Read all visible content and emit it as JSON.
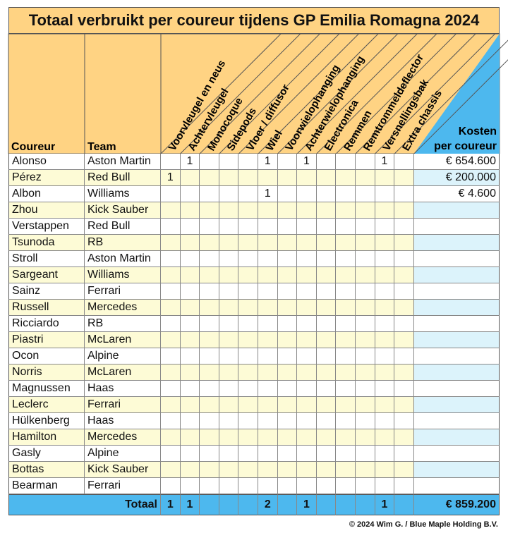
{
  "title": "Totaal verbruikt per coureur tijdens GP Emilia Romagna 2024",
  "headers": {
    "driver": "Coureur",
    "team": "Team",
    "parts": [
      "Voorvleugel en neus",
      "Achtervleugel",
      "Monocoque",
      "Sidepods",
      "Vloer / diffusor",
      "Wiel",
      "Voorwielophanging",
      "Achterwielophanging",
      "Electronica",
      "Remmen",
      "Remtrommeldeflector",
      "Versnellingsbak",
      "Extra chassis"
    ],
    "cost_line1": "Kosten",
    "cost_line2": "per coureur"
  },
  "rows": [
    {
      "driver": "Alonso",
      "team": "Aston Martin",
      "parts": [
        "",
        "1",
        "",
        "",
        "",
        "1",
        "",
        "1",
        "",
        "",
        "",
        "1",
        ""
      ],
      "cost": "€ 654.600"
    },
    {
      "driver": "Pérez",
      "team": "Red Bull",
      "parts": [
        "1",
        "",
        "",
        "",
        "",
        "",
        "",
        "",
        "",
        "",
        "",
        "",
        ""
      ],
      "cost": "€ 200.000"
    },
    {
      "driver": "Albon",
      "team": "Williams",
      "parts": [
        "",
        "",
        "",
        "",
        "",
        "1",
        "",
        "",
        "",
        "",
        "",
        "",
        ""
      ],
      "cost": "€ 4.600"
    },
    {
      "driver": "Zhou",
      "team": "Kick Sauber",
      "parts": [
        "",
        "",
        "",
        "",
        "",
        "",
        "",
        "",
        "",
        "",
        "",
        "",
        ""
      ],
      "cost": ""
    },
    {
      "driver": "Verstappen",
      "team": "Red Bull",
      "parts": [
        "",
        "",
        "",
        "",
        "",
        "",
        "",
        "",
        "",
        "",
        "",
        "",
        ""
      ],
      "cost": ""
    },
    {
      "driver": "Tsunoda",
      "team": "RB",
      "parts": [
        "",
        "",
        "",
        "",
        "",
        "",
        "",
        "",
        "",
        "",
        "",
        "",
        ""
      ],
      "cost": ""
    },
    {
      "driver": "Stroll",
      "team": "Aston Martin",
      "parts": [
        "",
        "",
        "",
        "",
        "",
        "",
        "",
        "",
        "",
        "",
        "",
        "",
        ""
      ],
      "cost": ""
    },
    {
      "driver": "Sargeant",
      "team": "Williams",
      "parts": [
        "",
        "",
        "",
        "",
        "",
        "",
        "",
        "",
        "",
        "",
        "",
        "",
        ""
      ],
      "cost": ""
    },
    {
      "driver": "Sainz",
      "team": "Ferrari",
      "parts": [
        "",
        "",
        "",
        "",
        "",
        "",
        "",
        "",
        "",
        "",
        "",
        "",
        ""
      ],
      "cost": ""
    },
    {
      "driver": "Russell",
      "team": "Mercedes",
      "parts": [
        "",
        "",
        "",
        "",
        "",
        "",
        "",
        "",
        "",
        "",
        "",
        "",
        ""
      ],
      "cost": ""
    },
    {
      "driver": "Ricciardo",
      "team": "RB",
      "parts": [
        "",
        "",
        "",
        "",
        "",
        "",
        "",
        "",
        "",
        "",
        "",
        "",
        ""
      ],
      "cost": ""
    },
    {
      "driver": "Piastri",
      "team": "McLaren",
      "parts": [
        "",
        "",
        "",
        "",
        "",
        "",
        "",
        "",
        "",
        "",
        "",
        "",
        ""
      ],
      "cost": ""
    },
    {
      "driver": "Ocon",
      "team": "Alpine",
      "parts": [
        "",
        "",
        "",
        "",
        "",
        "",
        "",
        "",
        "",
        "",
        "",
        "",
        ""
      ],
      "cost": ""
    },
    {
      "driver": "Norris",
      "team": "McLaren",
      "parts": [
        "",
        "",
        "",
        "",
        "",
        "",
        "",
        "",
        "",
        "",
        "",
        "",
        ""
      ],
      "cost": ""
    },
    {
      "driver": "Magnussen",
      "team": "Haas",
      "parts": [
        "",
        "",
        "",
        "",
        "",
        "",
        "",
        "",
        "",
        "",
        "",
        "",
        ""
      ],
      "cost": ""
    },
    {
      "driver": "Leclerc",
      "team": "Ferrari",
      "parts": [
        "",
        "",
        "",
        "",
        "",
        "",
        "",
        "",
        "",
        "",
        "",
        "",
        ""
      ],
      "cost": ""
    },
    {
      "driver": "Hülkenberg",
      "team": "Haas",
      "parts": [
        "",
        "",
        "",
        "",
        "",
        "",
        "",
        "",
        "",
        "",
        "",
        "",
        ""
      ],
      "cost": ""
    },
    {
      "driver": "Hamilton",
      "team": "Mercedes",
      "parts": [
        "",
        "",
        "",
        "",
        "",
        "",
        "",
        "",
        "",
        "",
        "",
        "",
        ""
      ],
      "cost": ""
    },
    {
      "driver": "Gasly",
      "team": "Alpine",
      "parts": [
        "",
        "",
        "",
        "",
        "",
        "",
        "",
        "",
        "",
        "",
        "",
        "",
        ""
      ],
      "cost": ""
    },
    {
      "driver": "Bottas",
      "team": "Kick Sauber",
      "parts": [
        "",
        "",
        "",
        "",
        "",
        "",
        "",
        "",
        "",
        "",
        "",
        "",
        ""
      ],
      "cost": ""
    },
    {
      "driver": "Bearman",
      "team": "Ferrari",
      "parts": [
        "",
        "",
        "",
        "",
        "",
        "",
        "",
        "",
        "",
        "",
        "",
        "",
        ""
      ],
      "cost": ""
    }
  ],
  "total": {
    "label": "Totaal",
    "parts": [
      "1",
      "1",
      "",
      "",
      "",
      "2",
      "",
      "1",
      "",
      "",
      "",
      "1",
      ""
    ],
    "cost": "€ 859.200"
  },
  "copyright": "© 2024 Wim G. / Blue Maple Holding B.V.",
  "colors": {
    "orange": "#ffd383",
    "yellow_light": "#fdfbd6",
    "blue": "#4db8ee",
    "blue_light": "#dcf3fb",
    "white": "#ffffff"
  }
}
